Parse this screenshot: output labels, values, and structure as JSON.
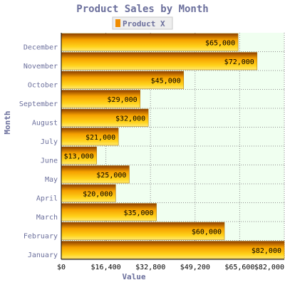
{
  "chart_data": {
    "type": "bar",
    "orientation": "horizontal",
    "title": "Product Sales by Month",
    "xlabel": "Value",
    "ylabel": "Month",
    "categories": [
      "January",
      "February",
      "March",
      "April",
      "May",
      "June",
      "July",
      "August",
      "September",
      "October",
      "November",
      "December"
    ],
    "series": [
      {
        "name": "Product X",
        "values": [
          82000,
          60000,
          35000,
          20000,
          25000,
          13000,
          21000,
          32000,
          29000,
          45000,
          72000,
          65000
        ],
        "value_labels": [
          "$82,000",
          "$60,000",
          "$35,000",
          "$20,000",
          "$25,000",
          "$13,000",
          "$21,000",
          "$32,000",
          "$29,000",
          "$45,000",
          "$72,000",
          "$65,000"
        ]
      }
    ],
    "xlim": [
      0,
      82000
    ],
    "x_ticks": [
      0,
      16400,
      32800,
      49200,
      65600,
      82000
    ],
    "x_tick_labels": [
      "$0",
      "$16,400",
      "$32,800",
      "$49,200",
      "$65,600",
      "$82,000"
    ],
    "grid": true,
    "legend_position": "top-center",
    "colors": {
      "bar_light": "#ffd21a",
      "bar_mid": "#f5a000",
      "bar_dark": "#8a3c00",
      "plot_background": "#f0fff0",
      "grid": "#8f8f8f",
      "title": "#6b6f9c",
      "legend_swatch": "#f08c00"
    }
  }
}
